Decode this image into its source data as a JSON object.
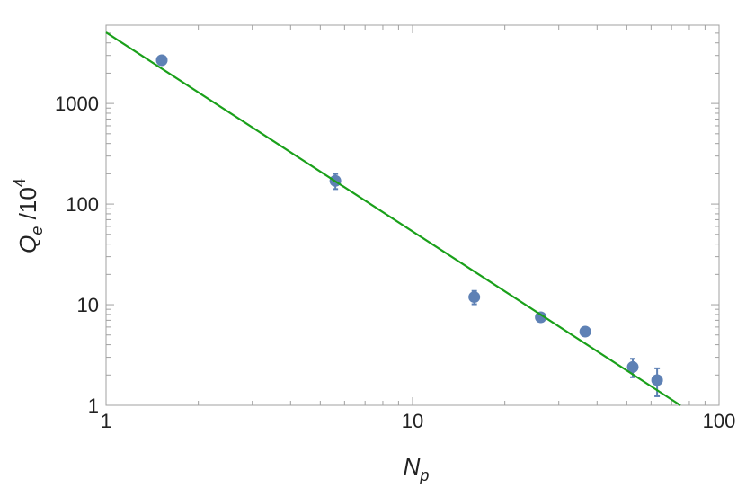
{
  "chart_data": {
    "type": "scatter",
    "x_label": {
      "main": "N",
      "sub": "p"
    },
    "y_label": {
      "main": "Q",
      "sub": "e",
      "rest": " /10",
      "sup": "4"
    },
    "log_x": true,
    "log_y": true,
    "xlim": [
      1,
      100
    ],
    "ylim": [
      1,
      6000
    ],
    "xticks": [
      1,
      10,
      100
    ],
    "yticks": [
      1,
      10,
      100,
      1000
    ],
    "series": [
      {
        "type": "scatter",
        "color": "#5e81b5",
        "x": [
          1.52,
          5.6,
          15.9,
          26.2,
          36.6,
          52.3,
          62.8
        ],
        "values": [
          2690,
          170,
          11.9,
          7.5,
          5.4,
          2.4,
          1.78
        ],
        "errors": [
          230,
          29,
          1.8,
          0.7,
          0.3,
          0.5,
          0.55
        ]
      },
      {
        "type": "line",
        "color": "#1aa01a",
        "x": [
          1,
          74.8
        ],
        "values": [
          5080,
          1
        ]
      }
    ]
  }
}
